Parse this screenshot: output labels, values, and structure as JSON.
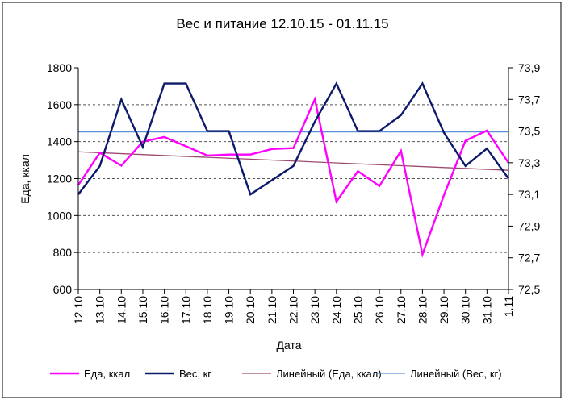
{
  "chart_data": {
    "type": "line",
    "title": "Вес и питание 12.10.15 - 01.11.15",
    "xlabel": "Дата",
    "ylabel": "Еда, ккал",
    "y2label": "",
    "categories": [
      "12.10",
      "13.10",
      "14.10",
      "15.10",
      "16.10",
      "17.10",
      "18.10",
      "19.10",
      "20.10",
      "21.10",
      "22.10",
      "23.10",
      "24.10",
      "25.10",
      "26.10",
      "27.10",
      "28.10",
      "29.10",
      "30.10",
      "31.10",
      "1.11"
    ],
    "ylim": [
      600,
      1800
    ],
    "y2lim": [
      72.5,
      73.9
    ],
    "yticks": [
      "600",
      "800",
      "1000",
      "1200",
      "1400",
      "1600",
      "1800"
    ],
    "y2ticks": [
      "72,5",
      "72,7",
      "72,9",
      "73,1",
      "73,3",
      "73,5",
      "73,7",
      "73,9"
    ],
    "grid": true,
    "legend_position": "bottom",
    "series": [
      {
        "name": "Еда, ккал",
        "axis": "left",
        "color": "#FF00FF",
        "values": [
          1165,
          1340,
          1270,
          1400,
          1425,
          1375,
          1325,
          1330,
          1330,
          1360,
          1365,
          1630,
          1075,
          1240,
          1160,
          1350,
          790,
          1110,
          1405,
          1460,
          1285
        ]
      },
      {
        "name": "Вес, кг",
        "axis": "right",
        "color": "#0D1A6B",
        "values": [
          73.1,
          73.28,
          73.7,
          73.4,
          73.8,
          73.8,
          73.5,
          73.5,
          73.1,
          73.19,
          73.28,
          73.56,
          73.8,
          73.5,
          73.5,
          73.6,
          73.8,
          73.49,
          73.28,
          73.39,
          73.2
        ]
      },
      {
        "name": "Линейный (Еда, ккал)",
        "axis": "left",
        "color": "#9C4A6E",
        "trend": true,
        "start": 1345,
        "end": 1245
      },
      {
        "name": "Линейный (Вес, кг)",
        "axis": "right",
        "color": "#5B8FD6",
        "trend": true,
        "start": 73.495,
        "end": 73.495
      }
    ]
  }
}
